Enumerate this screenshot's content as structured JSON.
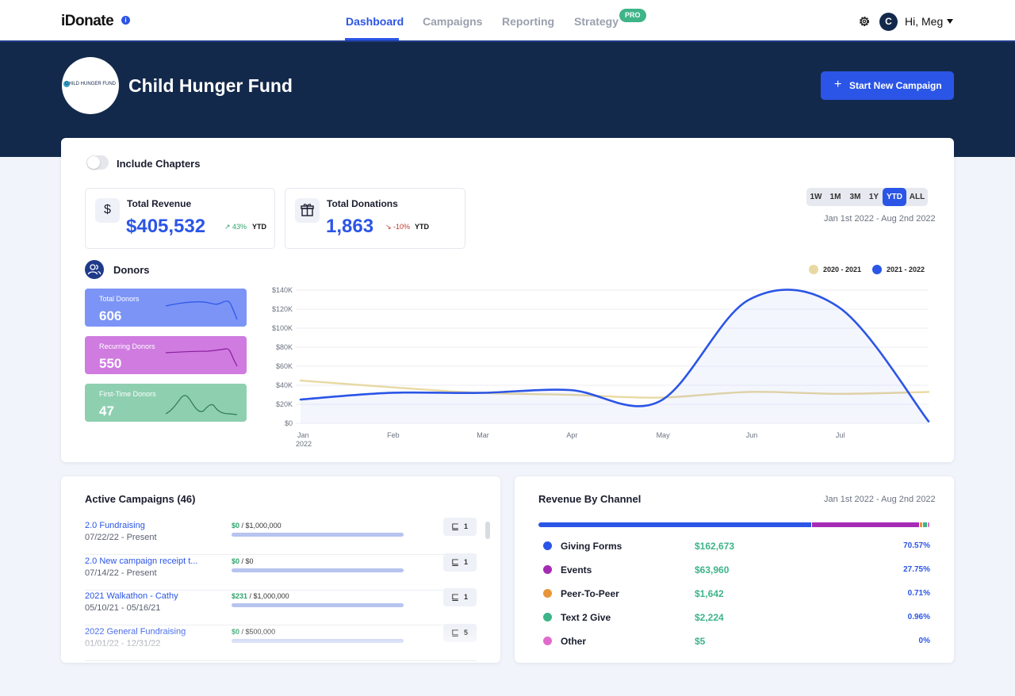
{
  "header": {
    "logo": "iDonate",
    "info_icon": "info-icon",
    "nav": [
      {
        "label": "Dashboard",
        "active": true
      },
      {
        "label": "Campaigns",
        "active": false
      },
      {
        "label": "Reporting",
        "active": false
      },
      {
        "label": "Strategy",
        "active": false
      }
    ],
    "pro_badge": "PRO",
    "settings_icon": "gear-icon",
    "avatar_initial": "C",
    "greeting": "Hi, Meg"
  },
  "hero": {
    "org_logo_text": "CHILD HUNGER FUND",
    "org_name": "Child Hunger Fund",
    "start_button": "Start New Campaign"
  },
  "dashboard": {
    "include_chapters_label": "Include Chapters",
    "include_chapters_on": false,
    "kpis": [
      {
        "label": "Total Revenue",
        "value": "$405,532",
        "delta": "43%",
        "delta_direction": "up",
        "period": "YTD",
        "icon": "dollar-icon"
      },
      {
        "label": "Total Donations",
        "value": "1,863",
        "delta": "-10%",
        "delta_direction": "down",
        "period": "YTD",
        "icon": "gift-icon"
      }
    ],
    "ranges": [
      "1W",
      "1M",
      "3M",
      "1Y",
      "YTD",
      "ALL"
    ],
    "active_range": "YTD",
    "date_range": "Jan 1st 2022 - Aug 2nd 2022",
    "donors_title": "Donors",
    "donor_tiles": [
      {
        "label": "Total Donors",
        "value": "606",
        "color": "#7b94f6"
      },
      {
        "label": "Recurring Donors",
        "value": "550",
        "color": "#cf7be0"
      },
      {
        "label": "First-Time Donors",
        "value": "47",
        "color": "#8ecfb0"
      }
    ]
  },
  "chart_data": {
    "type": "line",
    "x": [
      "Jan 2022",
      "Feb",
      "Mar",
      "Apr",
      "May",
      "Jun",
      "Jul",
      "Aug"
    ],
    "x_tick_labels": [
      {
        "label": "Jan",
        "sub": "2022"
      },
      {
        "label": "Feb",
        "sub": ""
      },
      {
        "label": "Mar",
        "sub": ""
      },
      {
        "label": "Apr",
        "sub": ""
      },
      {
        "label": "May",
        "sub": ""
      },
      {
        "label": "Jun",
        "sub": ""
      },
      {
        "label": "Jul",
        "sub": ""
      }
    ],
    "y_ticks": [
      "$0",
      "$20K",
      "$40K",
      "$60K",
      "$80K",
      "$100K",
      "$120K",
      "$140K"
    ],
    "ylim": [
      0,
      140000
    ],
    "series": [
      {
        "name": "2020 - 2021",
        "color": "#e8d9a4",
        "values": [
          45000,
          38000,
          32000,
          30000,
          27000,
          33000,
          31000,
          33000
        ]
      },
      {
        "name": "2021 - 2022",
        "color": "#2b55e6",
        "values": [
          25000,
          32000,
          32000,
          35000,
          23000,
          130000,
          122000,
          2000
        ]
      }
    ],
    "legend": "top-right",
    "grid": true
  },
  "campaigns": {
    "title": "Active Campaigns (46)",
    "items": [
      {
        "name": "2.0 Fundraising",
        "dates": "07/22/22 - Present",
        "raised": "$0",
        "goal": "/ $1,000,000",
        "chapters": "1"
      },
      {
        "name": "2.0 New campaign receipt t...",
        "dates": "07/14/22 - Present",
        "raised": "$0",
        "goal": "/ $0",
        "chapters": "1"
      },
      {
        "name": "2021 Walkathon - Cathy",
        "dates": "05/10/21 - 05/16/21",
        "raised": "$231",
        "goal": "/ $1,000,000",
        "chapters": "1"
      },
      {
        "name": "2022 General Fundraising",
        "dates": "01/01/22 - 12/31/22",
        "raised": "$0",
        "goal": "/ $500,000",
        "chapters": "5"
      }
    ]
  },
  "revenue_by_channel": {
    "title": "Revenue By Channel",
    "date_range": "Jan 1st 2022 - Aug 2nd 2022",
    "channels": [
      {
        "name": "Giving Forms",
        "amount": "$162,673",
        "percent": "70.57%",
        "share": 70.57,
        "color": "#2b55e6"
      },
      {
        "name": "Events",
        "amount": "$63,960",
        "percent": "27.75%",
        "share": 27.75,
        "color": "#a52bb5"
      },
      {
        "name": "Peer-To-Peer",
        "amount": "$1,642",
        "percent": "0.71%",
        "share": 0.71,
        "color": "#e8953a"
      },
      {
        "name": "Text 2 Give",
        "amount": "$2,224",
        "percent": "0.96%",
        "share": 0.96,
        "color": "#3eb489"
      },
      {
        "name": "Other",
        "amount": "$5",
        "percent": "0%",
        "share": 0.01,
        "color": "#e06bcb"
      }
    ]
  }
}
